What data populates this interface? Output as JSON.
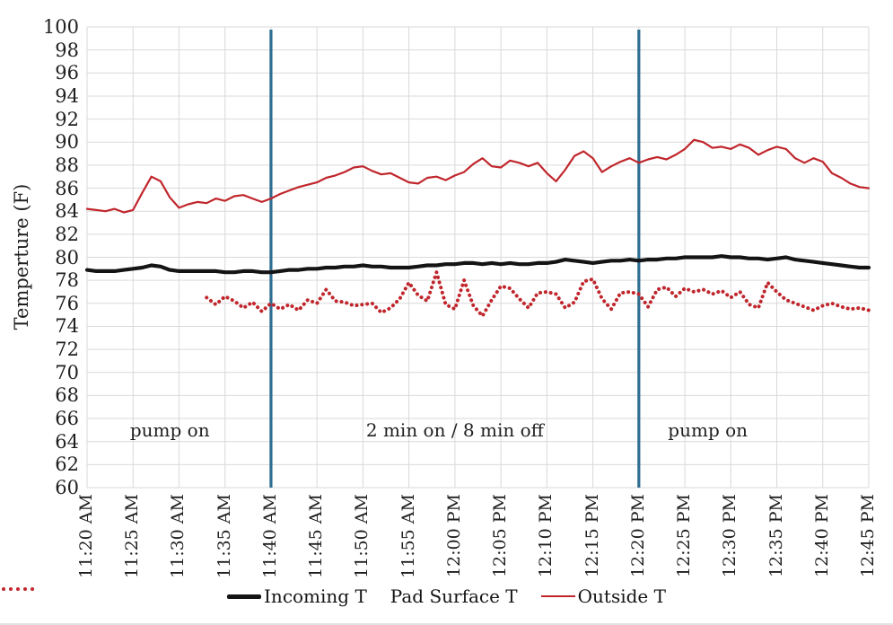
{
  "chart_data": {
    "type": "line",
    "title": "",
    "xlabel": "",
    "ylabel": "Temperture (F)",
    "ylim": [
      60,
      100
    ],
    "ytick_step": 2,
    "grid": true,
    "legend_position": "bottom",
    "x_categories": [
      "11:20 AM",
      "11:25 AM",
      "11:30 AM",
      "11:35 AM",
      "11:40 AM",
      "11:45 AM",
      "11:50 AM",
      "11:55 AM",
      "12:00 PM",
      "12:05 PM",
      "12:10 PM",
      "12:15 PM",
      "12:20 PM",
      "12:25 PM",
      "12:30 PM",
      "12:35 PM",
      "12:40 PM",
      "12:45 PM"
    ],
    "x_minutes_total": 85,
    "series": [
      {
        "name": "Incoming T",
        "style": "solid-thick",
        "color": "#141414",
        "start_minute": 0,
        "step_minutes": 1,
        "values": [
          78.9,
          78.8,
          78.8,
          78.8,
          78.9,
          79.0,
          79.1,
          79.3,
          79.2,
          78.9,
          78.8,
          78.8,
          78.8,
          78.8,
          78.8,
          78.7,
          78.7,
          78.8,
          78.8,
          78.7,
          78.7,
          78.8,
          78.9,
          78.9,
          79.0,
          79.0,
          79.1,
          79.1,
          79.2,
          79.2,
          79.3,
          79.2,
          79.2,
          79.1,
          79.1,
          79.1,
          79.2,
          79.3,
          79.3,
          79.4,
          79.4,
          79.5,
          79.5,
          79.4,
          79.5,
          79.4,
          79.5,
          79.4,
          79.4,
          79.5,
          79.5,
          79.6,
          79.8,
          79.7,
          79.6,
          79.5,
          79.6,
          79.7,
          79.7,
          79.8,
          79.7,
          79.8,
          79.8,
          79.9,
          79.9,
          80.0,
          80.0,
          80.0,
          80.0,
          80.1,
          80.0,
          80.0,
          79.9,
          79.9,
          79.8,
          79.9,
          80.0,
          79.8,
          79.7,
          79.6,
          79.5,
          79.4,
          79.3,
          79.2,
          79.1,
          79.1
        ]
      },
      {
        "name": "Pad Surface T",
        "style": "dotted",
        "color": "#c0262c",
        "start_minute": 13,
        "step_minutes": 1,
        "values": [
          76.5,
          75.9,
          76.6,
          76.2,
          75.6,
          76.1,
          75.3,
          76.0,
          75.5,
          75.9,
          75.4,
          76.3,
          76.0,
          77.2,
          76.2,
          76.1,
          75.8,
          75.9,
          76.0,
          75.2,
          75.6,
          76.4,
          77.8,
          76.7,
          76.2,
          78.7,
          75.9,
          75.5,
          78.0,
          75.8,
          74.9,
          76.3,
          77.5,
          77.3,
          76.4,
          75.6,
          76.9,
          77.0,
          76.8,
          75.6,
          76.1,
          77.9,
          78.1,
          76.4,
          75.5,
          76.9,
          77.0,
          76.8,
          75.7,
          77.2,
          77.4,
          76.6,
          77.3,
          77.0,
          77.2,
          76.8,
          77.1,
          76.5,
          77.0,
          75.9,
          75.6,
          77.8,
          77.0,
          76.3,
          76.0,
          75.7,
          75.4,
          75.8,
          76.0,
          75.7,
          75.5,
          75.6,
          75.4
        ]
      },
      {
        "name": "Outside T",
        "style": "solid-thin",
        "color": "#c0262c",
        "start_minute": 0,
        "step_minutes": 1,
        "values": [
          84.2,
          84.1,
          84.0,
          84.2,
          83.9,
          84.1,
          85.6,
          87.0,
          86.6,
          85.2,
          84.3,
          84.6,
          84.8,
          84.7,
          85.1,
          84.9,
          85.3,
          85.4,
          85.1,
          84.8,
          85.1,
          85.5,
          85.8,
          86.1,
          86.3,
          86.5,
          86.9,
          87.1,
          87.4,
          87.8,
          87.9,
          87.5,
          87.2,
          87.3,
          86.9,
          86.5,
          86.4,
          86.9,
          87.0,
          86.7,
          87.1,
          87.4,
          88.1,
          88.6,
          87.9,
          87.8,
          88.4,
          88.2,
          87.9,
          88.2,
          87.3,
          86.6,
          87.6,
          88.8,
          89.2,
          88.6,
          87.4,
          87.9,
          88.3,
          88.6,
          88.2,
          88.5,
          88.7,
          88.5,
          88.9,
          89.4,
          90.2,
          90.0,
          89.5,
          89.6,
          89.4,
          89.8,
          89.5,
          88.9,
          89.3,
          89.6,
          89.4,
          88.6,
          88.2,
          88.6,
          88.3,
          87.3,
          86.9,
          86.4,
          86.1,
          86.0
        ]
      }
    ],
    "vlines": [
      {
        "minute": 20
      },
      {
        "minute": 60
      }
    ],
    "annotations": [
      {
        "text": "pump on",
        "minute": 9,
        "temp": 65
      },
      {
        "text": "2 min on / 8 min off",
        "minute": 40,
        "temp": 65
      },
      {
        "text": "pump on",
        "minute": 67.5,
        "temp": 65
      }
    ],
    "colors": {
      "grid": "#d9d9d9",
      "vline": "#2e6d91",
      "red": "#c0262c",
      "black_series": "#141414",
      "text": "#1f1f1f",
      "background": "#ffffff"
    }
  }
}
